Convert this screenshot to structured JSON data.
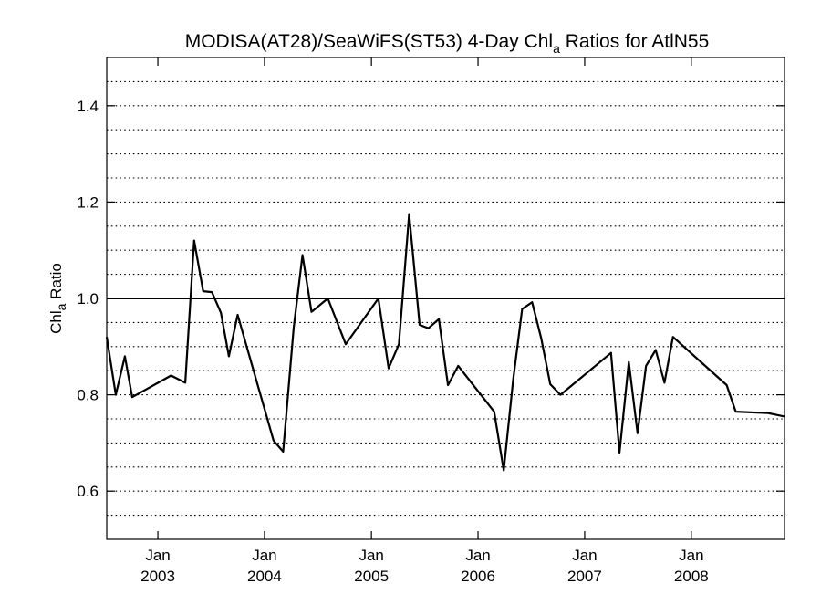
{
  "chart_data": {
    "type": "line",
    "title": {
      "before": "MODISA(AT28)/SeaWiFS(ST53) 4-Day Chl",
      "sub": "a",
      "after": " Ratios for AtlN55"
    },
    "ylabel": {
      "main": "Chl",
      "sub": "a",
      "after": " Ratio"
    },
    "xlim": [
      "2002-07-10",
      "2008-11-15"
    ],
    "ylim": [
      0.5,
      1.5
    ],
    "y_major_ticks": [
      0.6,
      0.8,
      1.0,
      1.2,
      1.4
    ],
    "y_tick_labels": [
      "0.6",
      "0.8",
      "1.0",
      "1.2",
      "1.4"
    ],
    "y_gridlines": [
      0.55,
      0.6,
      0.65,
      0.7,
      0.75,
      0.8,
      0.85,
      0.9,
      0.95,
      1.05,
      1.1,
      1.15,
      1.2,
      1.25,
      1.3,
      1.35,
      1.4,
      1.45
    ],
    "reference_line": 1.0,
    "x_ticks": [
      {
        "date": "2003-01-01",
        "month": "Jan",
        "year": "2003"
      },
      {
        "date": "2004-01-01",
        "month": "Jan",
        "year": "2004"
      },
      {
        "date": "2005-01-01",
        "month": "Jan",
        "year": "2005"
      },
      {
        "date": "2006-01-01",
        "month": "Jan",
        "year": "2006"
      },
      {
        "date": "2007-01-01",
        "month": "Jan",
        "year": "2007"
      },
      {
        "date": "2008-01-01",
        "month": "Jan",
        "year": "2008"
      }
    ],
    "grid": "horizontal dotted",
    "series": [
      {
        "points": [
          [
            "2002-07-10",
            0.92
          ],
          [
            "2002-08-10",
            0.8
          ],
          [
            "2002-09-10",
            0.88
          ],
          [
            "2002-10-05",
            0.795
          ],
          [
            "2003-02-15",
            0.84
          ],
          [
            "2003-04-05",
            0.825
          ],
          [
            "2003-05-05",
            1.12
          ],
          [
            "2003-06-05",
            1.015
          ],
          [
            "2003-07-05",
            1.013
          ],
          [
            "2003-08-05",
            0.97
          ],
          [
            "2003-09-01",
            0.88
          ],
          [
            "2003-10-01",
            0.966
          ],
          [
            "2004-02-01",
            0.705
          ],
          [
            "2004-03-05",
            0.682
          ],
          [
            "2004-04-10",
            0.94
          ],
          [
            "2004-05-10",
            1.09
          ],
          [
            "2004-06-10",
            0.972
          ],
          [
            "2004-08-05",
            1.0
          ],
          [
            "2004-10-05",
            0.905
          ],
          [
            "2005-01-25",
            1.0
          ],
          [
            "2005-03-01",
            0.855
          ],
          [
            "2005-04-05",
            0.905
          ],
          [
            "2005-05-10",
            1.175
          ],
          [
            "2005-06-15",
            0.945
          ],
          [
            "2005-07-15",
            0.938
          ],
          [
            "2005-08-20",
            0.957
          ],
          [
            "2005-09-20",
            0.82
          ],
          [
            "2005-10-25",
            0.86
          ],
          [
            "2006-02-25",
            0.765
          ],
          [
            "2006-03-30",
            0.643
          ],
          [
            "2006-05-01",
            0.83
          ],
          [
            "2006-06-01",
            0.978
          ],
          [
            "2006-07-05",
            0.992
          ],
          [
            "2006-08-05",
            0.918
          ],
          [
            "2006-09-05",
            0.822
          ],
          [
            "2006-10-10",
            0.8
          ],
          [
            "2007-04-01",
            0.887
          ],
          [
            "2007-04-30",
            0.68
          ],
          [
            "2007-06-01",
            0.868
          ],
          [
            "2007-07-01",
            0.72
          ],
          [
            "2007-07-30",
            0.86
          ],
          [
            "2007-09-01",
            0.893
          ],
          [
            "2007-10-01",
            0.825
          ],
          [
            "2007-10-30",
            0.92
          ],
          [
            "2008-05-01",
            0.82
          ],
          [
            "2008-06-01",
            0.765
          ],
          [
            "2008-09-20",
            0.762
          ],
          [
            "2008-11-15",
            0.755
          ]
        ]
      }
    ]
  }
}
